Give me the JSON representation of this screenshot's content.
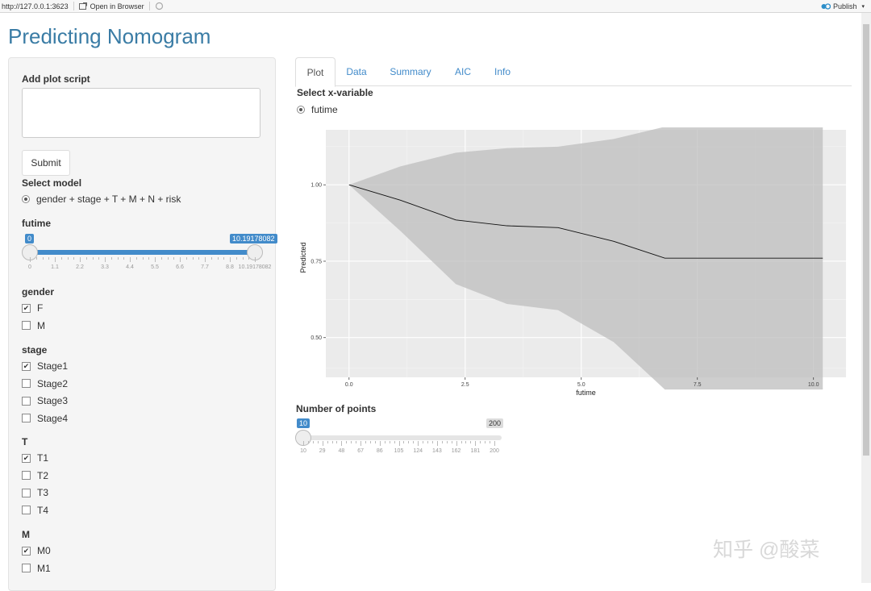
{
  "topbar": {
    "url": "http://127.0.0.1:3623",
    "open_label": "Open in Browser",
    "publish_label": "Publish"
  },
  "app": {
    "title": "Predicting Nomogram"
  },
  "sidebar": {
    "script_label": "Add plot script",
    "submit_label": "Submit",
    "model_label": "Select model",
    "model_option": "gender + stage + T + M + N + risk",
    "futime": {
      "label": "futime",
      "min_tag": "0",
      "max_tag": "10.19178082",
      "ticks": [
        "0",
        "1.1",
        "2.2",
        "3.3",
        "4.4",
        "5.5",
        "6.6",
        "7.7",
        "8.8",
        "10.19178082"
      ],
      "value_low": 0,
      "value_high": 10.19178082
    },
    "groups": [
      {
        "label": "gender",
        "options": [
          {
            "label": "F",
            "checked": true
          },
          {
            "label": "M",
            "checked": false
          }
        ]
      },
      {
        "label": "stage",
        "options": [
          {
            "label": "Stage1",
            "checked": true
          },
          {
            "label": "Stage2",
            "checked": false
          },
          {
            "label": "Stage3",
            "checked": false
          },
          {
            "label": "Stage4",
            "checked": false
          }
        ]
      },
      {
        "label": "T",
        "options": [
          {
            "label": "T1",
            "checked": true
          },
          {
            "label": "T2",
            "checked": false
          },
          {
            "label": "T3",
            "checked": false
          },
          {
            "label": "T4",
            "checked": false
          }
        ]
      },
      {
        "label": "M",
        "options": [
          {
            "label": "M0",
            "checked": true
          },
          {
            "label": "M1",
            "checked": false
          }
        ]
      }
    ]
  },
  "tabs": [
    "Plot",
    "Data",
    "Summary",
    "AIC",
    "Info"
  ],
  "main": {
    "xvar_label": "Select x-variable",
    "xvar_option": "futime",
    "points_label": "Number of points",
    "points_min_tag": "10",
    "points_max_tag": "200",
    "points_ticks": [
      "10",
      "29",
      "48",
      "67",
      "86",
      "105",
      "124",
      "143",
      "162",
      "181",
      "200"
    ],
    "points_value": 10
  },
  "chart_data": {
    "type": "line",
    "xlabel": "futime",
    "ylabel": "Predicted",
    "xlim": [
      -0.5,
      10.7
    ],
    "ylim": [
      0.37,
      1.18
    ],
    "x_ticks": [
      "0.0",
      "2.5",
      "5.0",
      "7.5",
      "10.0"
    ],
    "y_ticks": [
      "0.50",
      "0.75",
      "1.00"
    ],
    "series": [
      {
        "x": [
          0.0,
          1.1,
          2.3,
          3.4,
          4.5,
          5.7,
          6.8,
          7.9,
          9.0,
          10.2
        ],
        "y": [
          1.0,
          0.95,
          0.885,
          0.866,
          0.86,
          0.815,
          0.76,
          0.76,
          0.76,
          0.76
        ],
        "lower": [
          1.0,
          0.85,
          0.675,
          0.61,
          0.59,
          0.485,
          0.33,
          0.33,
          0.33,
          0.33
        ],
        "upper": [
          1.0,
          1.06,
          1.105,
          1.12,
          1.125,
          1.15,
          1.19,
          1.19,
          1.19,
          1.19
        ]
      }
    ],
    "grid": true
  },
  "watermark": "知乎 @酸菜"
}
